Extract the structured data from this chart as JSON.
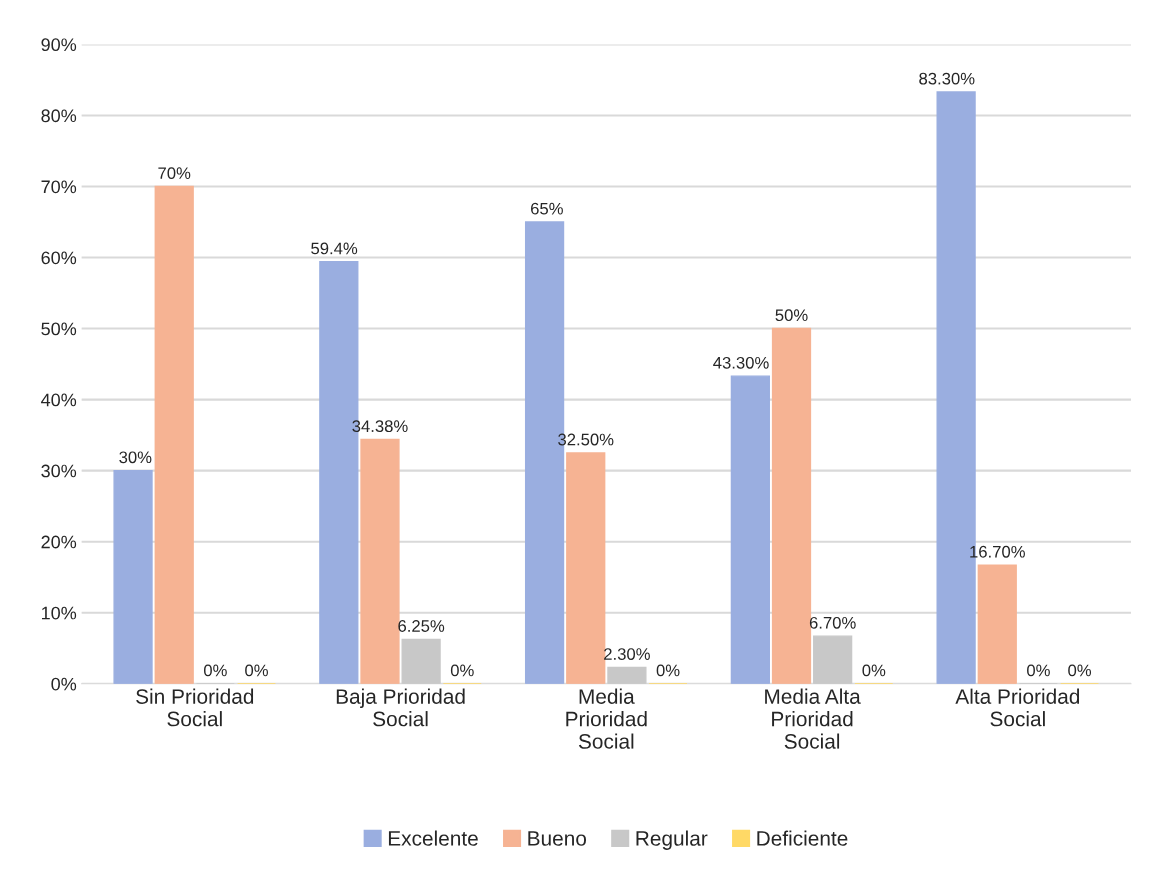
{
  "chart_data": {
    "type": "bar",
    "categories": [
      "Sin Prioridad\nSocial",
      "Baja Prioridad\nSocial",
      "Media\nPrioridad\nSocial",
      "Media Alta\nPrioridad\nSocial",
      "Alta Prioridad\nSocial"
    ],
    "series": [
      {
        "name": "Excelente",
        "color": "#9aaee0",
        "values": [
          30,
          59.4,
          65,
          43.3,
          83.3
        ],
        "value_labels": [
          "30%",
          "59.4%",
          "65%",
          "43.30%",
          "83.30%"
        ]
      },
      {
        "name": "Bueno",
        "color": "#f6b393",
        "values": [
          70,
          34.38,
          32.5,
          50,
          16.7
        ],
        "value_labels": [
          "70%",
          "34.38%",
          "32.50%",
          "50%",
          "16.70%"
        ]
      },
      {
        "name": "Regular",
        "color": "#c8c8c8",
        "values": [
          0,
          6.25,
          2.3,
          6.7,
          0
        ],
        "value_labels": [
          "0%",
          "6.25%",
          "2.30%",
          "6.70%",
          "0%"
        ]
      },
      {
        "name": "Deficiente",
        "color": "#ffd966",
        "values": [
          0,
          0,
          0,
          0,
          0
        ],
        "value_labels": [
          "0%",
          "0%",
          "0%",
          "0%",
          "0%"
        ]
      }
    ],
    "ylim": [
      0,
      90
    ],
    "yticks": [
      {
        "value": 0,
        "label": "0%"
      },
      {
        "value": 10,
        "label": "10%"
      },
      {
        "value": 20,
        "label": "20%"
      },
      {
        "value": 30,
        "label": "30%"
      },
      {
        "value": 40,
        "label": "40%"
      },
      {
        "value": 50,
        "label": "50%"
      },
      {
        "value": 60,
        "label": "60%"
      },
      {
        "value": 70,
        "label": "70%"
      },
      {
        "value": 80,
        "label": "80%"
      },
      {
        "value": 90,
        "label": "90%"
      }
    ],
    "grid": "y",
    "legend": "bottom"
  }
}
